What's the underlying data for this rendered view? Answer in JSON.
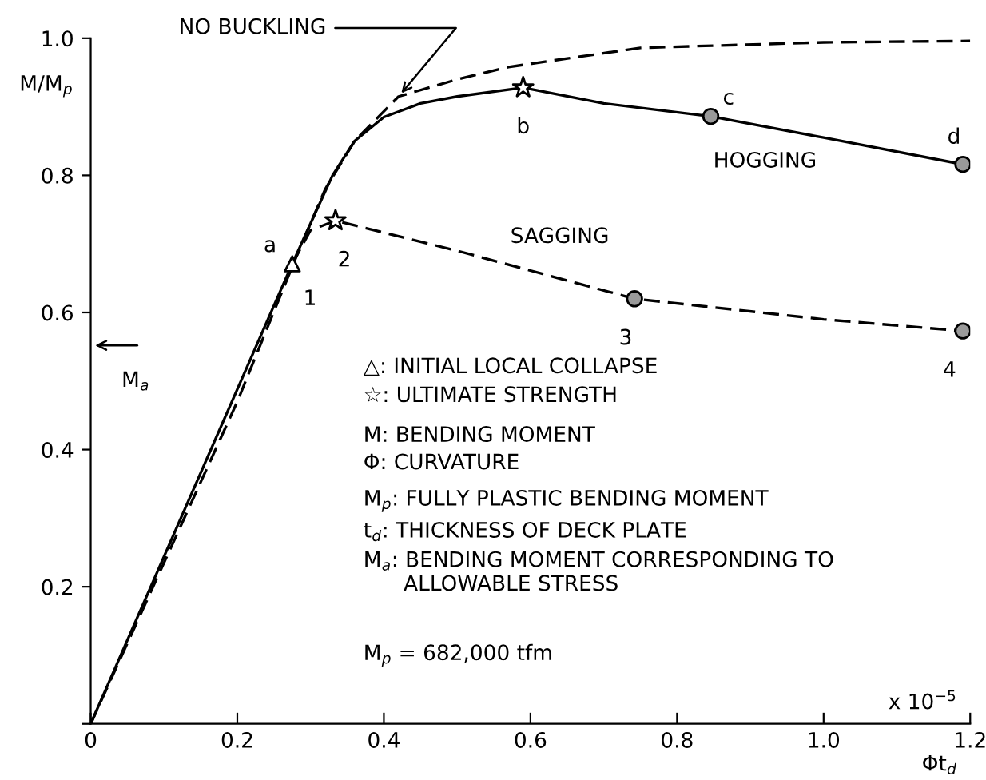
{
  "chart_data": {
    "type": "line",
    "xlabel": "Φt$_{d}$",
    "ylabel": "M/M$_{p}$",
    "xlim": [
      0,
      1.2
    ],
    "ylim": [
      0,
      1.0
    ],
    "xticks": [
      0,
      0.2,
      0.4,
      0.6,
      0.8,
      {
        "value": 1,
        "label": "1.0"
      },
      1.2
    ],
    "yticks": [
      {
        "value": 0,
        "label": null
      },
      0.2,
      0.4,
      0.6,
      0.8,
      {
        "value": 1,
        "label": "1.0"
      }
    ],
    "grid": false,
    "series": [
      {
        "name": "NO BUCKLING",
        "color": "#000000",
        "line_style": "dashed",
        "marker": "none",
        "x": [
          0,
          0.2,
          0.28,
          0.32,
          0.36,
          0.42,
          0.5,
          0.57,
          0.75,
          1.0,
          1.2
        ],
        "values": [
          0,
          0.47,
          0.68,
          0.78,
          0.85,
          0.915,
          0.94,
          0.958,
          0.986,
          0.994,
          0.996
        ]
      },
      {
        "name": "HOGGING",
        "color": "#000000",
        "line_style": "solid",
        "marker": "none",
        "x": [
          0,
          0.275,
          0.3,
          0.33,
          0.36,
          0.4,
          0.45,
          0.5,
          0.59,
          0.7,
          0.846,
          1.0,
          1.19
        ],
        "values": [
          0,
          0.671,
          0.73,
          0.8,
          0.85,
          0.885,
          0.905,
          0.915,
          0.928,
          0.905,
          0.886,
          0.855,
          0.816
        ]
      },
      {
        "name": "SAGGING",
        "color": "#000000",
        "line_style": "dashed",
        "marker": "none",
        "x": [
          0.275,
          0.3,
          0.334,
          0.5,
          0.742,
          1.0,
          1.19
        ],
        "values": [
          0.671,
          0.72,
          0.734,
          0.69,
          0.62,
          0.59,
          0.573
        ]
      },
      {
        "type": "scatter",
        "color": "#000000",
        "marker": "triangle",
        "x": [
          0.275
        ],
        "values": [
          0.671
        ]
      },
      {
        "type": "scatter",
        "color": "#000000",
        "marker": "star",
        "x": [
          0.59,
          0.334
        ],
        "values": [
          0.928,
          0.734
        ]
      },
      {
        "type": "scatter",
        "color": "#000000",
        "marker": "circle",
        "x": [
          0.846,
          1.19,
          0.742,
          1.19
        ],
        "values": [
          0.886,
          0.816,
          0.62,
          0.573
        ]
      }
    ],
    "annotations": [
      {
        "text": "a",
        "x": 0.275,
        "y": 0.671
      },
      {
        "text": "1",
        "x": 0.275,
        "y": 0.671
      },
      {
        "text": "2",
        "x": 0.334,
        "y": 0.734
      },
      {
        "text": "b",
        "x": 0.59,
        "y": 0.928
      },
      {
        "text": "c",
        "x": 0.846,
        "y": 0.886
      },
      {
        "text": "d",
        "x": 1.19,
        "y": 0.816
      },
      {
        "text": "3",
        "x": 0.742,
        "y": 0.62
      },
      {
        "text": "4",
        "x": 1.19,
        "y": 0.573
      },
      "M$_{a}$",
      "△: INITIAL LOCAL COLLAPSE",
      "☆: ULTIMATE STRENGTH",
      "M: BENDING MOMENT",
      "Φ: CURVATURE",
      "M$_{p}$: FULLY PLASTIC BENDING MOMENT",
      "t$_{d}$: THICKNESS OF DECK PLATE",
      "M$_{a}$: BENDING MOMENT CORRESPONDING TO\n      ALLOWABLE STRESS",
      "M$_{p}$ = 682,000 tfm",
      "x 10$^{−5}$"
    ]
  }
}
